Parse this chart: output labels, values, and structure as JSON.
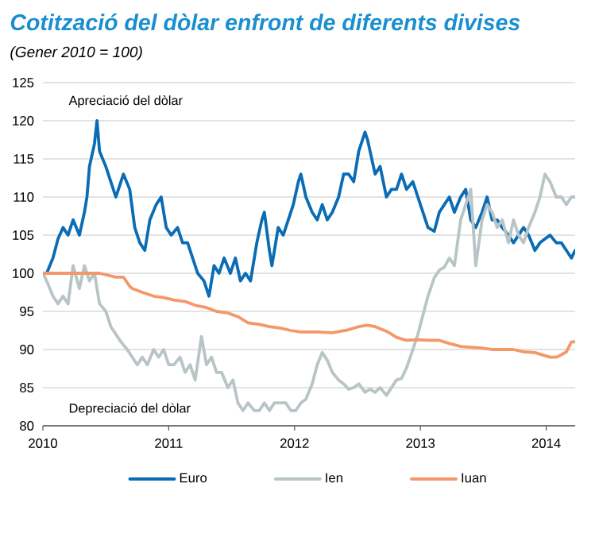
{
  "chart_data": {
    "type": "line",
    "title": "Cotització del dòlar enfront de diferents divises",
    "subtitle": "(Gener 2010 = 100)",
    "annotations": [
      "Apreciació del dòlar",
      "Depreciació del dòlar"
    ],
    "xlim": [
      2010,
      2014.23
    ],
    "xticks": [
      2010,
      2011,
      2012,
      2013,
      2014
    ],
    "ylim": [
      80,
      125
    ],
    "yticks": [
      80,
      85,
      90,
      95,
      100,
      105,
      110,
      115,
      120,
      125
    ],
    "grid": "y",
    "legend": "bottom",
    "line_style": "solid",
    "series": [
      {
        "name": "Euro",
        "color": "#0a6cb4",
        "x": [
          2010.0,
          2010.03,
          2010.08,
          2010.12,
          2010.16,
          2010.2,
          2010.24,
          2010.29,
          2010.33,
          2010.35,
          2010.37,
          2010.41,
          2010.43,
          2010.45,
          2010.5,
          2010.54,
          2010.58,
          2010.62,
          2010.64,
          2010.69,
          2010.73,
          2010.77,
          2010.81,
          2010.85,
          2010.9,
          2010.94,
          2010.98,
          2011.02,
          2011.07,
          2011.11,
          2011.15,
          2011.19,
          2011.23,
          2011.28,
          2011.32,
          2011.36,
          2011.4,
          2011.44,
          2011.49,
          2011.53,
          2011.57,
          2011.61,
          2011.65,
          2011.7,
          2011.74,
          2011.76,
          2011.8,
          2011.82,
          2011.87,
          2011.91,
          2011.95,
          2011.99,
          2012.03,
          2012.05,
          2012.09,
          2012.14,
          2012.18,
          2012.22,
          2012.26,
          2012.3,
          2012.35,
          2012.39,
          2012.43,
          2012.47,
          2012.51,
          2012.56,
          2012.58,
          2012.6,
          2012.64,
          2012.68,
          2012.73,
          2012.77,
          2012.81,
          2012.85,
          2012.89,
          2012.94,
          2012.98,
          2013.02,
          2013.06,
          2013.11,
          2013.15,
          2013.19,
          2013.23,
          2013.27,
          2013.32,
          2013.36,
          2013.4,
          2013.44,
          2013.49,
          2013.53,
          2013.57,
          2013.61,
          2013.65,
          2013.7,
          2013.74,
          2013.78,
          2013.82,
          2013.86,
          2013.91,
          2013.95,
          2013.99,
          2014.03,
          2014.08,
          2014.12,
          2014.16,
          2014.2,
          2014.23
        ],
        "values": [
          100,
          100,
          102,
          104.5,
          106,
          105,
          107,
          105,
          108,
          110,
          114,
          117,
          120,
          116,
          114,
          112,
          110,
          112,
          113,
          111,
          106,
          104,
          103,
          107,
          109,
          110,
          106,
          105,
          106,
          104,
          104,
          102,
          100,
          99,
          97,
          101,
          100,
          102,
          100,
          102,
          99,
          100,
          99,
          104,
          107,
          108,
          103,
          101,
          106,
          105,
          107,
          109,
          112,
          113,
          110,
          108,
          107,
          109,
          107,
          108,
          110,
          113,
          113,
          112,
          116,
          118.5,
          117.5,
          116,
          113,
          114,
          110,
          111,
          111,
          113,
          111,
          112,
          110,
          108,
          106,
          105.5,
          108,
          109,
          110,
          108,
          110,
          111,
          107,
          106,
          108,
          110,
          107,
          107,
          106,
          105,
          104,
          105,
          106,
          105,
          103,
          104,
          104.5,
          105,
          104,
          104,
          103,
          102,
          103
        ]
      },
      {
        "name": "Ien",
        "color": "#b8c4c6",
        "x": [
          2010.0,
          2010.03,
          2010.08,
          2010.12,
          2010.16,
          2010.2,
          2010.24,
          2010.29,
          2010.33,
          2010.37,
          2010.41,
          2010.45,
          2010.5,
          2010.54,
          2010.58,
          2010.62,
          2010.67,
          2010.71,
          2010.75,
          2010.79,
          2010.83,
          2010.88,
          2010.92,
          2010.96,
          2011.0,
          2011.04,
          2011.09,
          2011.13,
          2011.17,
          2011.21,
          2011.26,
          2011.3,
          2011.34,
          2011.38,
          2011.42,
          2011.47,
          2011.51,
          2011.55,
          2011.59,
          2011.63,
          2011.68,
          2011.72,
          2011.76,
          2011.8,
          2011.84,
          2011.89,
          2011.93,
          2011.97,
          2012.01,
          2012.05,
          2012.09,
          2012.14,
          2012.18,
          2012.22,
          2012.26,
          2012.3,
          2012.35,
          2012.39,
          2012.43,
          2012.47,
          2012.51,
          2012.56,
          2012.6,
          2012.64,
          2012.68,
          2012.73,
          2012.77,
          2012.81,
          2012.85,
          2012.89,
          2012.94,
          2012.98,
          2013.02,
          2013.06,
          2013.11,
          2013.15,
          2013.19,
          2013.23,
          2013.27,
          2013.32,
          2013.36,
          2013.4,
          2013.44,
          2013.49,
          2013.53,
          2013.57,
          2013.61,
          2013.65,
          2013.7,
          2013.74,
          2013.78,
          2013.82,
          2013.86,
          2013.91,
          2013.95,
          2013.99,
          2014.03,
          2014.08,
          2014.12,
          2014.16,
          2014.2,
          2014.23
        ],
        "values": [
          100,
          99,
          97,
          96,
          97,
          96,
          101,
          98,
          101,
          99,
          100,
          96,
          95,
          93,
          92,
          91,
          90,
          89,
          88,
          89,
          88,
          90,
          89,
          90,
          88,
          88,
          89,
          87,
          88,
          86,
          91.7,
          88,
          89,
          87,
          87,
          85,
          86,
          83,
          82,
          83,
          82,
          82,
          83,
          82,
          83,
          83,
          83,
          82,
          82,
          83,
          83.5,
          85.5,
          88,
          89.6,
          88.6,
          87,
          86,
          85.5,
          84.8,
          85,
          85.5,
          84.4,
          84.8,
          84.4,
          85,
          84,
          85,
          86,
          86.2,
          87.6,
          90,
          92,
          94.5,
          97,
          99.4,
          100.4,
          100.8,
          102,
          101,
          107,
          109,
          111,
          101,
          107,
          109,
          108,
          106,
          107,
          104,
          107,
          105,
          104,
          106,
          108,
          110,
          113,
          112,
          110,
          110,
          109,
          110,
          110
        ]
      },
      {
        "name": "Iuan",
        "color": "#f4986a",
        "x": [
          2010.0,
          2010.45,
          2010.58,
          2010.64,
          2010.69,
          2010.71,
          2010.79,
          2010.88,
          2010.96,
          2011.04,
          2011.13,
          2011.21,
          2011.3,
          2011.38,
          2011.47,
          2011.55,
          2011.63,
          2011.72,
          2011.8,
          2011.89,
          2011.97,
          2012.05,
          2012.18,
          2012.3,
          2012.43,
          2012.51,
          2012.58,
          2012.64,
          2012.73,
          2012.81,
          2012.89,
          2012.98,
          2013.06,
          2013.15,
          2013.23,
          2013.32,
          2013.4,
          2013.49,
          2013.57,
          2013.65,
          2013.74,
          2013.82,
          2013.91,
          2013.99,
          2014.03,
          2014.08,
          2014.12,
          2014.16,
          2014.2,
          2014.23
        ],
        "values": [
          100,
          100,
          99.5,
          99.5,
          98.3,
          98,
          97.5,
          97,
          96.8,
          96.5,
          96.3,
          95.8,
          95.5,
          95,
          94.8,
          94.3,
          93.5,
          93.3,
          93,
          92.8,
          92.5,
          92.3,
          92.3,
          92.2,
          92.6,
          93,
          93.2,
          93,
          92.4,
          91.6,
          91.2,
          91.3,
          91.2,
          91.2,
          90.8,
          90.4,
          90.3,
          90.2,
          90,
          90,
          90,
          89.7,
          89.6,
          89.2,
          89,
          89,
          89.3,
          89.7,
          91,
          91
        ]
      }
    ]
  }
}
